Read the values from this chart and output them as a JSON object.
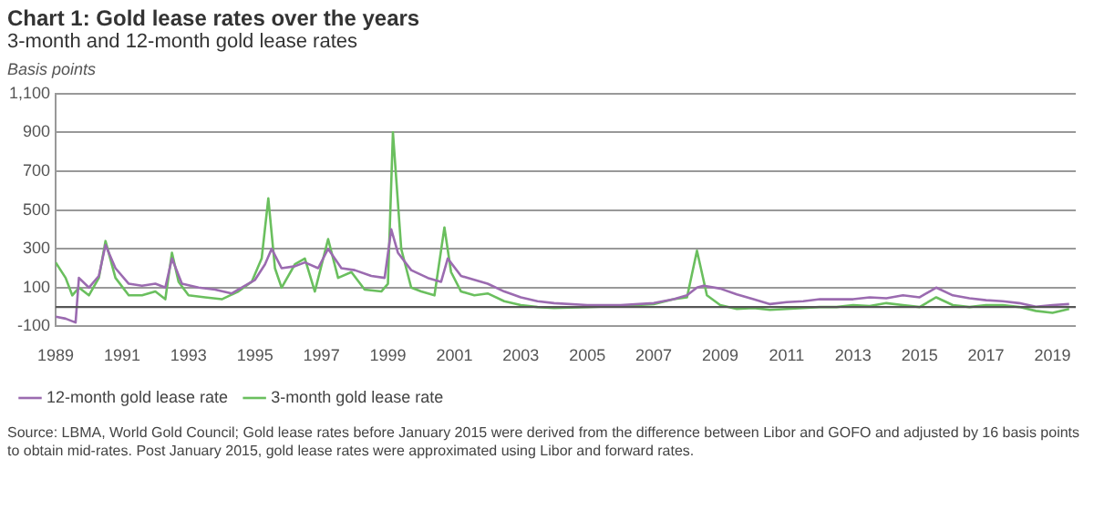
{
  "chart_data": {
    "type": "line",
    "title": "Chart 1: Gold lease rates over the years",
    "subtitle": "3-month and 12-month gold lease rates",
    "ylabel": "Basis points",
    "xlim": [
      1989,
      2019.7
    ],
    "xticks": [
      1989,
      1991,
      1993,
      1995,
      1997,
      1999,
      2001,
      2003,
      2005,
      2007,
      2009,
      2011,
      2013,
      2015,
      2017,
      2019
    ],
    "ylim": [
      -100,
      1100
    ],
    "yticks": [
      -100,
      100,
      300,
      500,
      700,
      900,
      {
        "value": 1100,
        "label": "1,100"
      }
    ],
    "grid": "y",
    "legend": "bottom left",
    "marker": "none",
    "line_style": "solid",
    "ref_lines": [
      {
        "axis": "y",
        "value": 0,
        "color": "#555555"
      }
    ],
    "series": [
      {
        "name": "12-month gold lease rate",
        "color": "#9b6bb0",
        "x": [
          1989,
          1989.3,
          1989.6,
          1989.7,
          1990,
          1990.3,
          1990.5,
          1990.8,
          1991.2,
          1991.6,
          1992,
          1992.3,
          1992.5,
          1992.8,
          1993.3,
          1993.8,
          1994.3,
          1994.7,
          1995,
          1995.3,
          1995.5,
          1995.8,
          1996.2,
          1996.5,
          1996.9,
          1997.2,
          1997.6,
          1998,
          1998.5,
          1998.9,
          1999.1,
          1999.3,
          1999.7,
          2000.2,
          2000.6,
          2000.8,
          2001.2,
          2001.6,
          2002,
          2002.5,
          2003,
          2003.5,
          2004,
          2005,
          2006,
          2007,
          2007.6,
          2008,
          2008.3,
          2008.5,
          2009,
          2009.5,
          2010,
          2010.5,
          2011,
          2011.5,
          2012,
          2012.5,
          2013,
          2013.5,
          2014,
          2014.5,
          2015,
          2015.5,
          2016,
          2016.5,
          2017,
          2017.5,
          2018,
          2018.5,
          2019,
          2019.5
        ],
        "values": [
          -50,
          -60,
          -80,
          150,
          100,
          160,
          320,
          200,
          120,
          110,
          120,
          100,
          250,
          120,
          100,
          90,
          70,
          110,
          140,
          220,
          300,
          200,
          210,
          230,
          200,
          300,
          200,
          190,
          160,
          150,
          400,
          280,
          190,
          150,
          130,
          250,
          160,
          140,
          120,
          80,
          50,
          30,
          20,
          10,
          10,
          20,
          40,
          60,
          100,
          110,
          95,
          65,
          40,
          15,
          25,
          30,
          40,
          40,
          40,
          50,
          45,
          60,
          50,
          100,
          60,
          45,
          35,
          30,
          20,
          2,
          10,
          15
        ]
      },
      {
        "name": "3-month gold lease rate",
        "color": "#6abf5e",
        "x": [
          1989,
          1989.3,
          1989.5,
          1989.7,
          1990,
          1990.3,
          1990.5,
          1990.8,
          1991.2,
          1991.6,
          1992,
          1992.3,
          1992.5,
          1992.7,
          1993,
          1993.5,
          1994,
          1994.5,
          1994.9,
          1995.2,
          1995.4,
          1995.6,
          1995.8,
          1996.2,
          1996.5,
          1996.8,
          1997.2,
          1997.5,
          1997.9,
          1998.3,
          1998.8,
          1999,
          1999.15,
          1999.4,
          1999.7,
          2000,
          2000.4,
          2000.7,
          2000.9,
          2001.2,
          2001.6,
          2002,
          2002.5,
          2003,
          2003.5,
          2004,
          2005,
          2006,
          2007,
          2007.6,
          2008,
          2008.3,
          2008.6,
          2009,
          2009.5,
          2010,
          2010.5,
          2011,
          2011.5,
          2012,
          2012.5,
          2013,
          2013.5,
          2014,
          2014.5,
          2015,
          2015.5,
          2016,
          2016.5,
          2017,
          2017.5,
          2018,
          2018.5,
          2019,
          2019.5
        ],
        "values": [
          230,
          150,
          60,
          100,
          60,
          150,
          340,
          150,
          60,
          60,
          80,
          40,
          280,
          130,
          60,
          50,
          40,
          80,
          130,
          250,
          560,
          200,
          100,
          220,
          250,
          80,
          350,
          150,
          180,
          90,
          80,
          120,
          900,
          300,
          100,
          80,
          60,
          410,
          180,
          80,
          60,
          70,
          30,
          10,
          0,
          -5,
          0,
          5,
          15,
          40,
          50,
          290,
          60,
          10,
          -10,
          -5,
          -15,
          -10,
          -5,
          0,
          0,
          10,
          5,
          20,
          10,
          0,
          50,
          10,
          0,
          10,
          10,
          0,
          -20,
          -30,
          -10
        ]
      }
    ],
    "annotations": [
      "Source: LBMA, World Gold Council; Gold lease rates before January 2015 were derived from the difference between Libor and GOFO and adjusted by 16 basis points to obtain mid-rates. Post January 2015, gold lease rates were approximated using Libor and forward rates."
    ]
  }
}
